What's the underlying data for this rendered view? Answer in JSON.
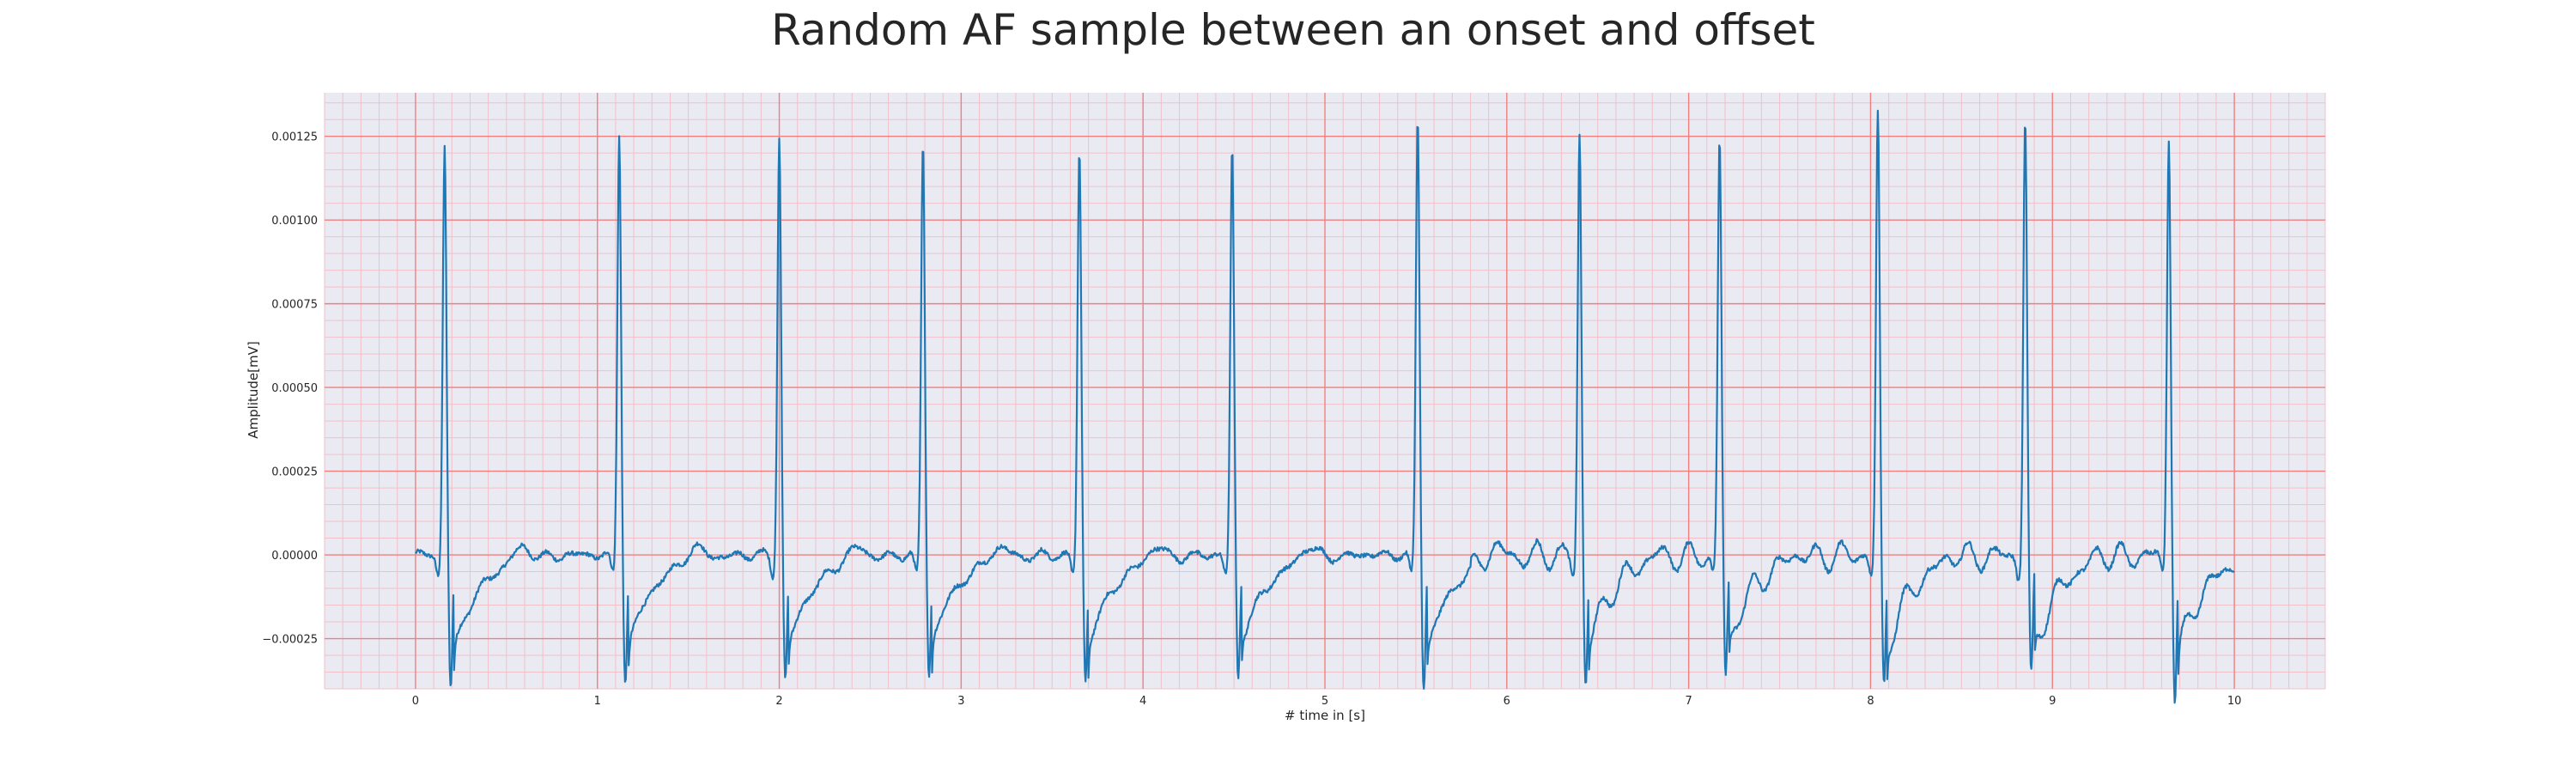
{
  "chart_data": {
    "type": "line",
    "title": "Random AF sample between an onset and offset",
    "xlabel": "# time in [s]",
    "ylabel": "Amplitude[mV]",
    "xlim": [
      -0.5,
      10.5
    ],
    "ylim": [
      -0.0004,
      0.00138
    ],
    "x_ticks": [
      0,
      1,
      2,
      3,
      4,
      5,
      6,
      7,
      8,
      9,
      10
    ],
    "x_tick_labels": [
      "0",
      "1",
      "2",
      "3",
      "4",
      "5",
      "6",
      "7",
      "8",
      "9",
      "10"
    ],
    "y_ticks": [
      -0.00025,
      0.0,
      0.00025,
      0.0005,
      0.00075,
      0.001,
      0.00125
    ],
    "y_tick_labels": [
      "−0.00025",
      "0.00000",
      "0.00025",
      "0.00050",
      "0.00075",
      "0.00100",
      "0.00125"
    ],
    "grid": true,
    "grid_major_color": "#f08080",
    "grid_minor_color": "#f2c0c8",
    "background_color": "#eaeaf2",
    "line_color": "#1f77b4",
    "x_range": [
      0,
      10
    ],
    "series": [
      {
        "beats": [
          {
            "t": 0.16,
            "peak": 0.00123,
            "trough": -0.0004
          },
          {
            "t": 1.12,
            "peak": 0.00126,
            "trough": -0.00038
          },
          {
            "t": 2.0,
            "peak": 0.00125,
            "trough": -0.00038
          },
          {
            "t": 2.79,
            "peak": 0.00123,
            "trough": -0.00036
          },
          {
            "t": 3.65,
            "peak": 0.00121,
            "trough": -0.00038
          },
          {
            "t": 4.49,
            "peak": 0.00121,
            "trough": -0.00037
          },
          {
            "t": 5.51,
            "peak": 0.00131,
            "trough": -0.0004
          },
          {
            "t": 6.4,
            "peak": 0.00126,
            "trough": -0.00038
          },
          {
            "t": 7.17,
            "peak": 0.00124,
            "trough": -0.00037
          },
          {
            "t": 8.04,
            "peak": 0.00131,
            "trough": -0.0004
          },
          {
            "t": 8.85,
            "peak": 0.0013,
            "trough": -0.00039
          },
          {
            "t": 9.64,
            "peak": 0.00126,
            "trough": -0.00042
          }
        ]
      }
    ]
  }
}
